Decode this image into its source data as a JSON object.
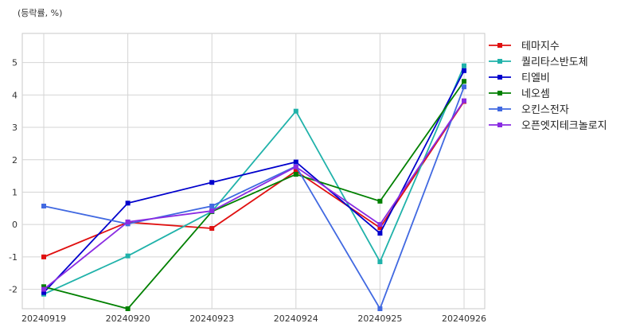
{
  "chart_data": {
    "type": "line",
    "unit_label": "(등락률, %)",
    "categories": [
      "20240919",
      "20240920",
      "20240923",
      "20240924",
      "20240925",
      "20240926"
    ],
    "ylim": [
      -2.6,
      5.9
    ],
    "yticks": [
      -2,
      -1,
      0,
      1,
      2,
      3,
      4,
      5
    ],
    "grid": true,
    "legend_position": "right",
    "series": [
      {
        "name": "테마지수",
        "color": "#e01010",
        "values": [
          -1.0,
          0.07,
          -0.12,
          1.65,
          -0.1,
          3.8
        ]
      },
      {
        "name": "퀄리타스반도체",
        "color": "#20b2aa",
        "values": [
          -2.15,
          -0.97,
          0.4,
          3.5,
          -1.15,
          4.9
        ]
      },
      {
        "name": "티엘비",
        "color": "#0000cc",
        "values": [
          -2.1,
          0.66,
          1.3,
          1.93,
          -0.27,
          4.75
        ]
      },
      {
        "name": "네오셈",
        "color": "#008000",
        "values": [
          -1.92,
          -2.6,
          0.4,
          1.55,
          0.72,
          4.42
        ]
      },
      {
        "name": "오킨스전자",
        "color": "#4169e1",
        "values": [
          0.57,
          0.02,
          0.57,
          1.8,
          -2.6,
          4.25
        ]
      },
      {
        "name": "오픈엣지테크놀로지",
        "color": "#8a2be2",
        "values": [
          -2.0,
          0.08,
          0.42,
          1.78,
          0.0,
          3.82
        ]
      }
    ]
  }
}
